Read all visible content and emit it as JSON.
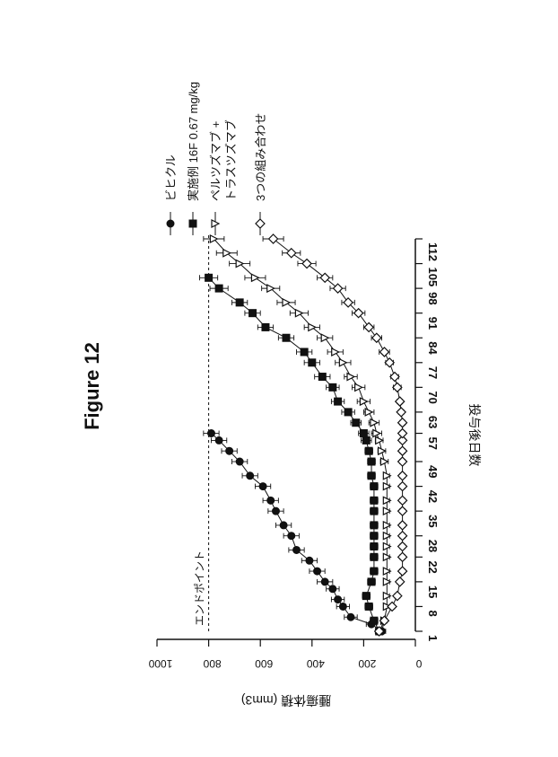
{
  "figure_title": "Figure 12",
  "chart_data": {
    "type": "line",
    "title": "",
    "xlabel": "投与後日数",
    "ylabel": "腫瘍体積 (mm3)",
    "ylim": [
      0,
      1000
    ],
    "yticks": [
      0,
      200,
      400,
      600,
      800,
      1000
    ],
    "x_categories": [
      "1",
      "8",
      "15",
      "22",
      "28",
      "35",
      "42",
      "49",
      "57",
      "63",
      "70",
      "77",
      "84",
      "91",
      "98",
      "105",
      "112"
    ],
    "endpoint": {
      "label": "エンドポイント",
      "value": 800
    },
    "legend_position": "right",
    "series": [
      {
        "name": "ビヒクル",
        "marker": "circle-filled",
        "x": [
          1,
          3,
          5,
          8,
          10,
          13,
          15,
          18,
          21,
          24,
          28,
          31,
          35,
          38,
          42,
          45,
          49,
          52,
          55,
          57
        ],
        "y": [
          130,
          170,
          250,
          280,
          300,
          320,
          350,
          380,
          410,
          460,
          480,
          510,
          540,
          560,
          590,
          640,
          680,
          720,
          760,
          790
        ],
        "err": [
          15,
          20,
          25,
          25,
          25,
          25,
          30,
          30,
          30,
          30,
          30,
          30,
          30,
          30,
          30,
          30,
          30,
          30,
          30,
          30
        ]
      },
      {
        "name": "実施例 16F 0.67 mg/kg",
        "marker": "square-filled",
        "x": [
          1,
          4,
          8,
          11,
          15,
          18,
          22,
          25,
          28,
          31,
          35,
          38,
          42,
          45,
          49,
          52,
          55,
          57,
          60,
          63,
          66,
          70,
          73,
          77,
          80,
          84,
          87,
          91,
          94,
          98,
          101
        ],
        "y": [
          140,
          160,
          180,
          190,
          170,
          160,
          160,
          160,
          160,
          160,
          160,
          160,
          160,
          170,
          170,
          180,
          190,
          200,
          230,
          260,
          300,
          320,
          360,
          400,
          430,
          500,
          580,
          630,
          680,
          760,
          800
        ],
        "err": [
          15,
          15,
          15,
          15,
          15,
          15,
          15,
          15,
          15,
          15,
          15,
          15,
          15,
          15,
          15,
          15,
          20,
          20,
          20,
          25,
          25,
          25,
          30,
          30,
          30,
          30,
          30,
          30,
          30,
          35,
          35
        ]
      },
      {
        "name": "ペルツズマブ + トラスツズマブ",
        "marker": "triangle-open",
        "x": [
          1,
          4,
          8,
          11,
          15,
          18,
          22,
          25,
          28,
          31,
          35,
          38,
          42,
          45,
          49,
          52,
          55,
          57,
          60,
          63,
          66,
          70,
          73,
          77,
          80,
          84,
          87,
          91,
          94,
          98,
          101,
          105,
          108,
          112
        ],
        "y": [
          130,
          120,
          110,
          110,
          110,
          110,
          110,
          110,
          110,
          110,
          110,
          110,
          110,
          110,
          120,
          130,
          140,
          150,
          160,
          180,
          200,
          220,
          250,
          280,
          310,
          350,
          400,
          450,
          500,
          560,
          620,
          680,
          730,
          780
        ],
        "err": [
          10,
          10,
          10,
          10,
          10,
          10,
          10,
          10,
          10,
          10,
          10,
          10,
          10,
          10,
          15,
          15,
          15,
          20,
          20,
          20,
          25,
          25,
          25,
          30,
          30,
          30,
          30,
          35,
          35,
          35,
          40,
          40,
          40,
          40
        ]
      },
      {
        "name": "3つの組み合わせ",
        "marker": "diamond-open",
        "x": [
          1,
          4,
          8,
          11,
          15,
          18,
          22,
          25,
          28,
          31,
          35,
          38,
          42,
          45,
          49,
          52,
          55,
          57,
          60,
          63,
          66,
          70,
          73,
          77,
          80,
          84,
          87,
          91,
          94,
          98,
          101,
          105,
          108,
          112
        ],
        "y": [
          140,
          120,
          90,
          70,
          60,
          50,
          50,
          50,
          50,
          50,
          50,
          50,
          50,
          50,
          50,
          50,
          50,
          50,
          50,
          55,
          60,
          70,
          80,
          100,
          120,
          150,
          180,
          220,
          260,
          300,
          350,
          420,
          480,
          550
        ],
        "err": [
          10,
          10,
          10,
          10,
          10,
          10,
          10,
          10,
          10,
          10,
          10,
          10,
          10,
          10,
          10,
          10,
          10,
          10,
          10,
          10,
          10,
          15,
          15,
          15,
          20,
          20,
          20,
          25,
          25,
          30,
          30,
          35,
          35,
          40
        ]
      }
    ]
  }
}
